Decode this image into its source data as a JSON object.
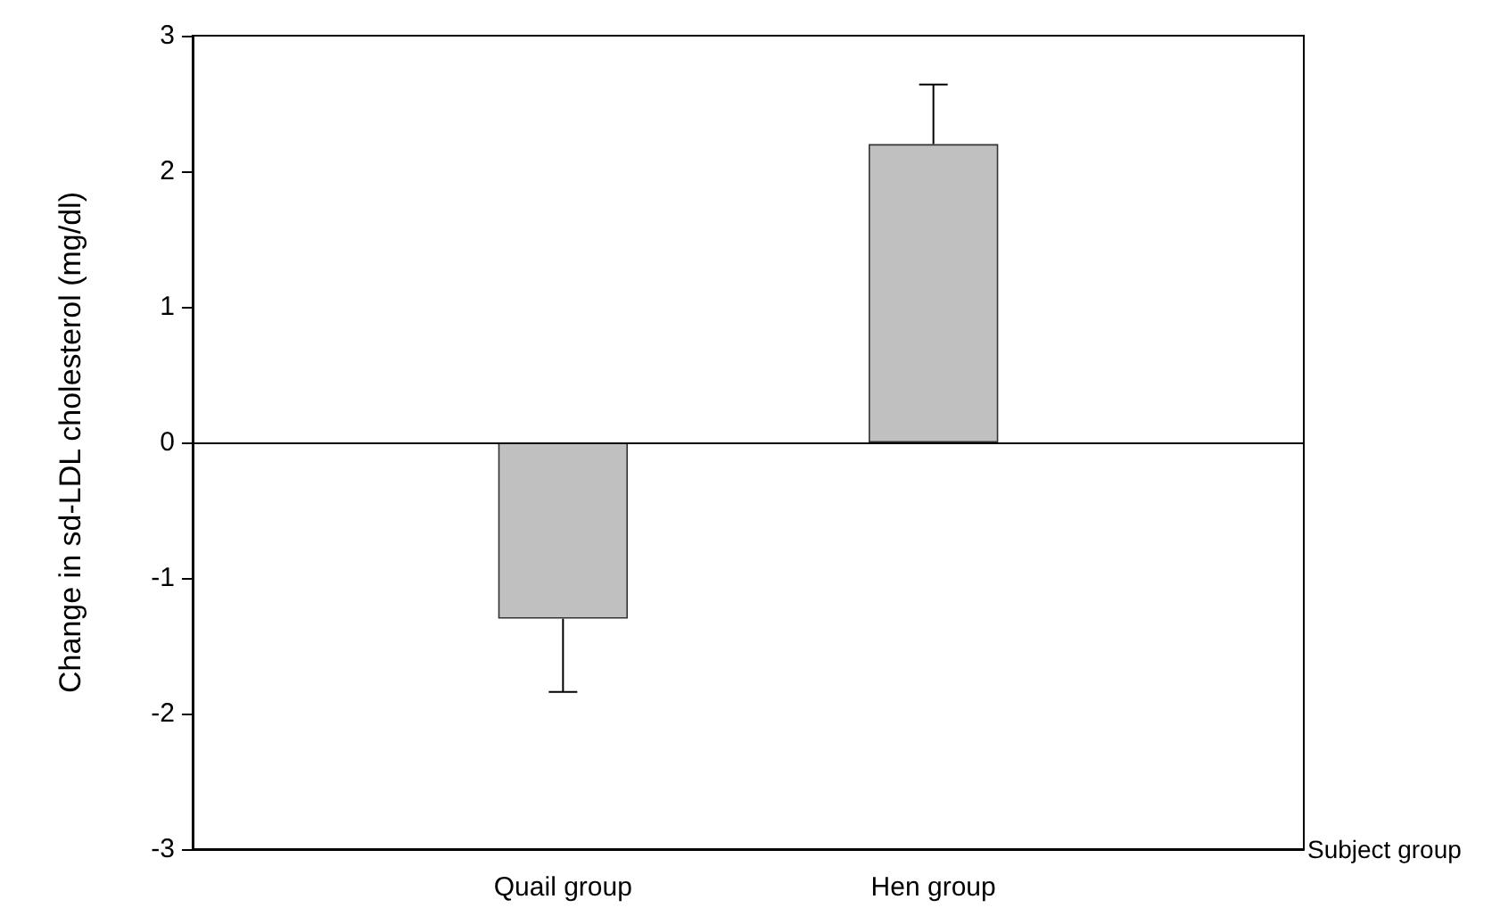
{
  "chart_data": {
    "type": "bar",
    "xlabel": "Subject group",
    "ylabel": "Change in sd-LDL cholesterol (mg/dl)",
    "categories": [
      "Quail group",
      "Hen group"
    ],
    "series": [
      {
        "color": "#c0c0c0",
        "values": [
          -1.3,
          2.2
        ],
        "errors": [
          [
            -1.84,
            -1.3
          ],
          [
            2.2,
            2.64
          ]
        ]
      }
    ],
    "ylim": [
      -3,
      3
    ],
    "yticks": [
      -3,
      -2,
      -1,
      0,
      1,
      2,
      3
    ],
    "ref_lines": [
      {
        "axis": "y",
        "value": 0,
        "color": "#000000"
      }
    ]
  }
}
